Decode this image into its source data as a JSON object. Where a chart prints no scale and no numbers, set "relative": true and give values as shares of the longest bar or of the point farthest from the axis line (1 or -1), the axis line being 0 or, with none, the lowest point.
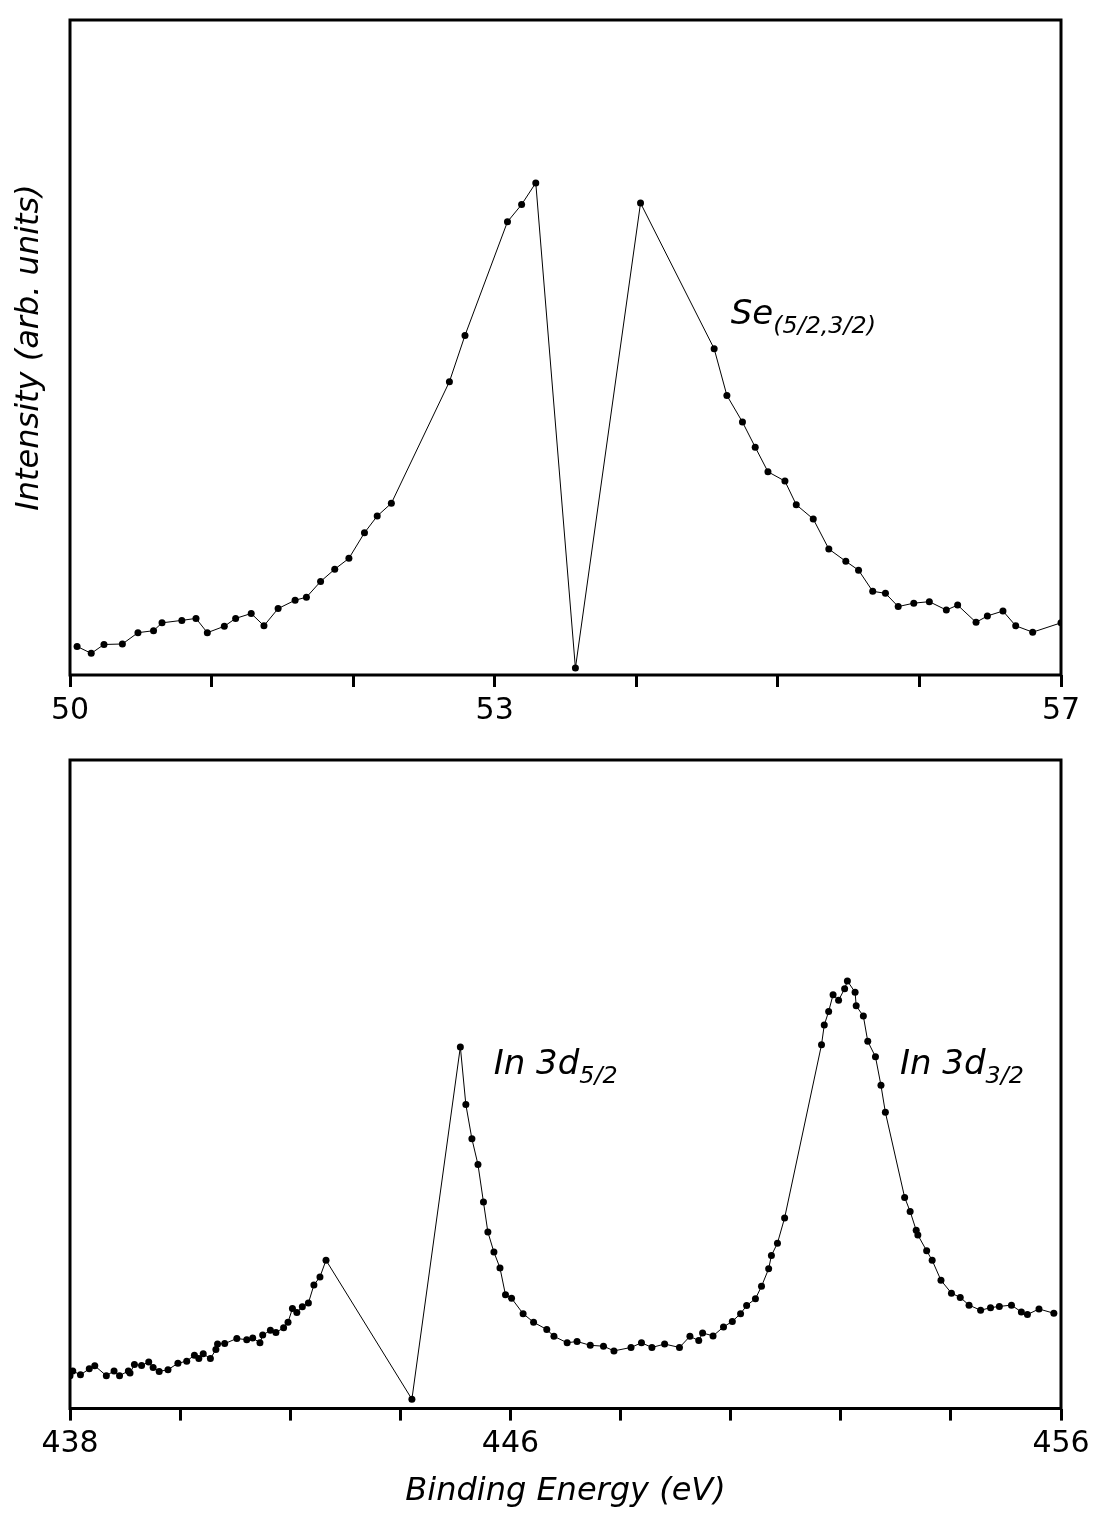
{
  "chart_data": [
    {
      "type": "line",
      "ylabel": "Intensity (arb. units)",
      "relative": true,
      "marker": "circle",
      "legend": false,
      "xlim": [
        50,
        57
      ],
      "xticks": [
        50,
        {
          "value": 51,
          "label": null
        },
        {
          "value": 52,
          "label": null
        },
        53,
        {
          "value": 54,
          "label": null
        },
        {
          "value": 55,
          "label": null
        },
        {
          "value": 56,
          "label": null
        },
        57
      ],
      "annotations": [
        "Se$_{(5/2,3/2)}$"
      ],
      "series": [
        {
          "color": "#000000",
          "x": [
            50.05,
            50.15,
            50.24,
            50.37,
            50.48,
            50.59,
            50.65,
            50.79,
            50.89,
            50.97,
            51.09,
            51.17,
            51.28,
            51.37,
            51.47,
            51.59,
            51.67,
            51.77,
            51.87,
            51.97,
            52.08,
            52.17,
            52.27,
            52.68,
            52.79,
            53.09,
            53.19,
            53.29,
            53.57,
            54.03,
            54.55,
            54.64,
            54.75,
            54.84,
            54.93,
            55.05,
            55.13,
            55.25,
            55.36,
            55.48,
            55.57,
            55.67,
            55.76,
            55.85,
            55.96,
            56.07,
            56.19,
            56.27,
            56.4,
            56.48,
            56.59,
            56.68,
            56.8,
            57
          ],
          "values": [
            0.058,
            0.044,
            0.062,
            0.063,
            0.086,
            0.09,
            0.106,
            0.111,
            0.115,
            0.086,
            0.099,
            0.115,
            0.125,
            0.1,
            0.135,
            0.152,
            0.158,
            0.19,
            0.215,
            0.237,
            0.289,
            0.323,
            0.349,
            0.596,
            0.69,
            0.921,
            0.956,
            1,
            0.014,
            0.959,
            0.663,
            0.568,
            0.514,
            0.463,
            0.413,
            0.394,
            0.346,
            0.317,
            0.256,
            0.231,
            0.213,
            0.17,
            0.166,
            0.139,
            0.146,
            0.149,
            0.132,
            0.142,
            0.107,
            0.12,
            0.13,
            0.1,
            0.087,
            0.106
          ]
        }
      ]
    },
    {
      "type": "line",
      "xlabel": "Binding Energy (eV)",
      "relative": true,
      "marker": "circle",
      "legend": false,
      "xlim": [
        438,
        456
      ],
      "xticks": [
        438,
        {
          "value": 440,
          "label": null
        },
        {
          "value": 442,
          "label": null
        },
        {
          "value": 444,
          "label": null
        },
        446,
        {
          "value": 448,
          "label": null
        },
        {
          "value": 450,
          "label": null
        },
        {
          "value": 452,
          "label": null
        },
        {
          "value": 454,
          "label": null
        },
        456
      ],
      "annotations": [
        "In 3d$_{5/2}$",
        "In 3d$_{3/2}$"
      ],
      "series": [
        {
          "color": "#000000",
          "x": [
            438,
            438.05,
            438.19,
            438.35,
            438.45,
            438.66,
            438.8,
            438.9,
            439.06,
            439.09,
            439.17,
            439.3,
            439.43,
            439.51,
            439.62,
            439.78,
            439.96,
            440.12,
            440.26,
            440.34,
            440.42,
            440.55,
            440.65,
            440.68,
            440.81,
            441.03,
            441.21,
            441.32,
            441.45,
            441.5,
            441.64,
            441.74,
            441.88,
            441.96,
            442.04,
            442.12,
            442.22,
            442.33,
            442.43,
            442.54,
            442.65,
            444.21,
            445.09,
            445.19,
            445.3,
            445.41,
            445.51,
            445.59,
            445.7,
            445.81,
            445.91,
            446.02,
            446.23,
            446.42,
            446.66,
            446.79,
            447.03,
            447.21,
            447.45,
            447.69,
            447.88,
            448.19,
            448.38,
            448.57,
            448.8,
            449.07,
            449.26,
            449.42,
            449.49,
            449.68,
            449.87,
            450.03,
            450.18,
            450.29,
            450.45,
            450.56,
            450.69,
            450.74,
            450.85,
            450.98,
            451.65,
            451.7,
            451.78,
            451.86,
            451.96,
            452.07,
            452.12,
            452.26,
            452.28,
            452.41,
            452.49,
            452.63,
            452.73,
            452.81,
            453.16,
            453.26,
            453.37,
            453.4,
            453.56,
            453.66,
            453.82,
            454.01,
            454.17,
            454.33,
            454.54,
            454.72,
            454.88,
            455.1,
            455.28,
            455.39,
            455.6,
            455.87
          ],
          "values": [
            0.077,
            0.088,
            0.079,
            0.093,
            0.1,
            0.077,
            0.088,
            0.077,
            0.088,
            0.083,
            0.103,
            0.101,
            0.109,
            0.096,
            0.087,
            0.091,
            0.106,
            0.111,
            0.125,
            0.117,
            0.128,
            0.117,
            0.138,
            0.151,
            0.152,
            0.164,
            0.161,
            0.165,
            0.154,
            0.172,
            0.183,
            0.178,
            0.189,
            0.202,
            0.234,
            0.225,
            0.238,
            0.247,
            0.289,
            0.308,
            0.347,
            0.022,
            0.846,
            0.711,
            0.631,
            0.571,
            0.483,
            0.413,
            0.366,
            0.329,
            0.266,
            0.258,
            0.222,
            0.202,
            0.185,
            0.169,
            0.154,
            0.157,
            0.148,
            0.146,
            0.135,
            0.143,
            0.154,
            0.143,
            0.151,
            0.143,
            0.169,
            0.159,
            0.177,
            0.17,
            0.191,
            0.204,
            0.222,
            0.241,
            0.257,
            0.286,
            0.327,
            0.358,
            0.387,
            0.446,
            0.851,
            0.897,
            0.929,
            0.968,
            0.955,
            0.982,
            1,
            0.974,
            0.942,
            0.918,
            0.859,
            0.823,
            0.756,
            0.693,
            0.494,
            0.461,
            0.417,
            0.406,
            0.369,
            0.347,
            0.3,
            0.27,
            0.26,
            0.242,
            0.23,
            0.236,
            0.239,
            0.242,
            0.226,
            0.22,
            0.233,
            0.223
          ]
        }
      ]
    }
  ]
}
